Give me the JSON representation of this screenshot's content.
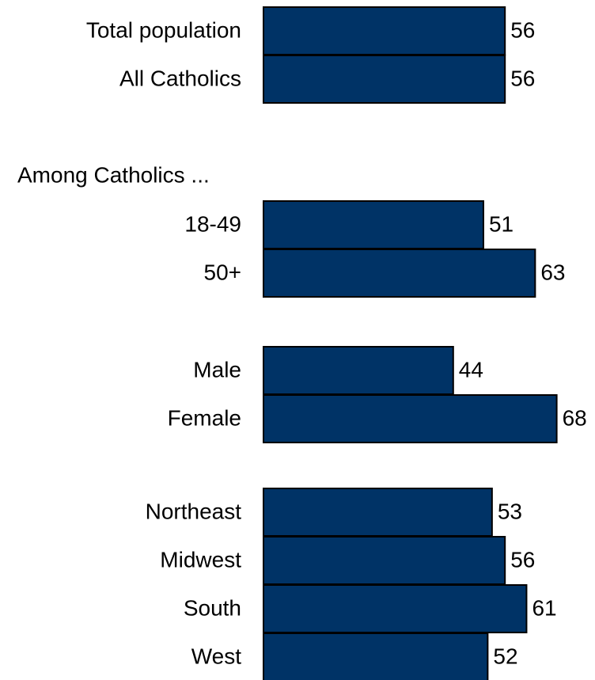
{
  "chart_data": {
    "type": "bar",
    "orientation": "horizontal",
    "title": "",
    "xlabel": "",
    "ylabel": "",
    "grid": false,
    "legend": "none",
    "xlim": [
      0,
      68
    ],
    "bar_color": "#003366",
    "groups": [
      {
        "heading": "",
        "categories": [
          "Total population",
          "All Catholics"
        ],
        "values": [
          56,
          56
        ]
      },
      {
        "heading": "Among Catholics ...",
        "categories": [
          "18-49",
          "50+"
        ],
        "values": [
          51,
          63
        ]
      },
      {
        "heading": "",
        "categories": [
          "Male",
          "Female"
        ],
        "values": [
          44,
          68
        ]
      },
      {
        "heading": "",
        "categories": [
          "Northeast",
          "Midwest",
          "South",
          "West"
        ],
        "values": [
          53,
          56,
          61,
          52
        ]
      }
    ]
  }
}
